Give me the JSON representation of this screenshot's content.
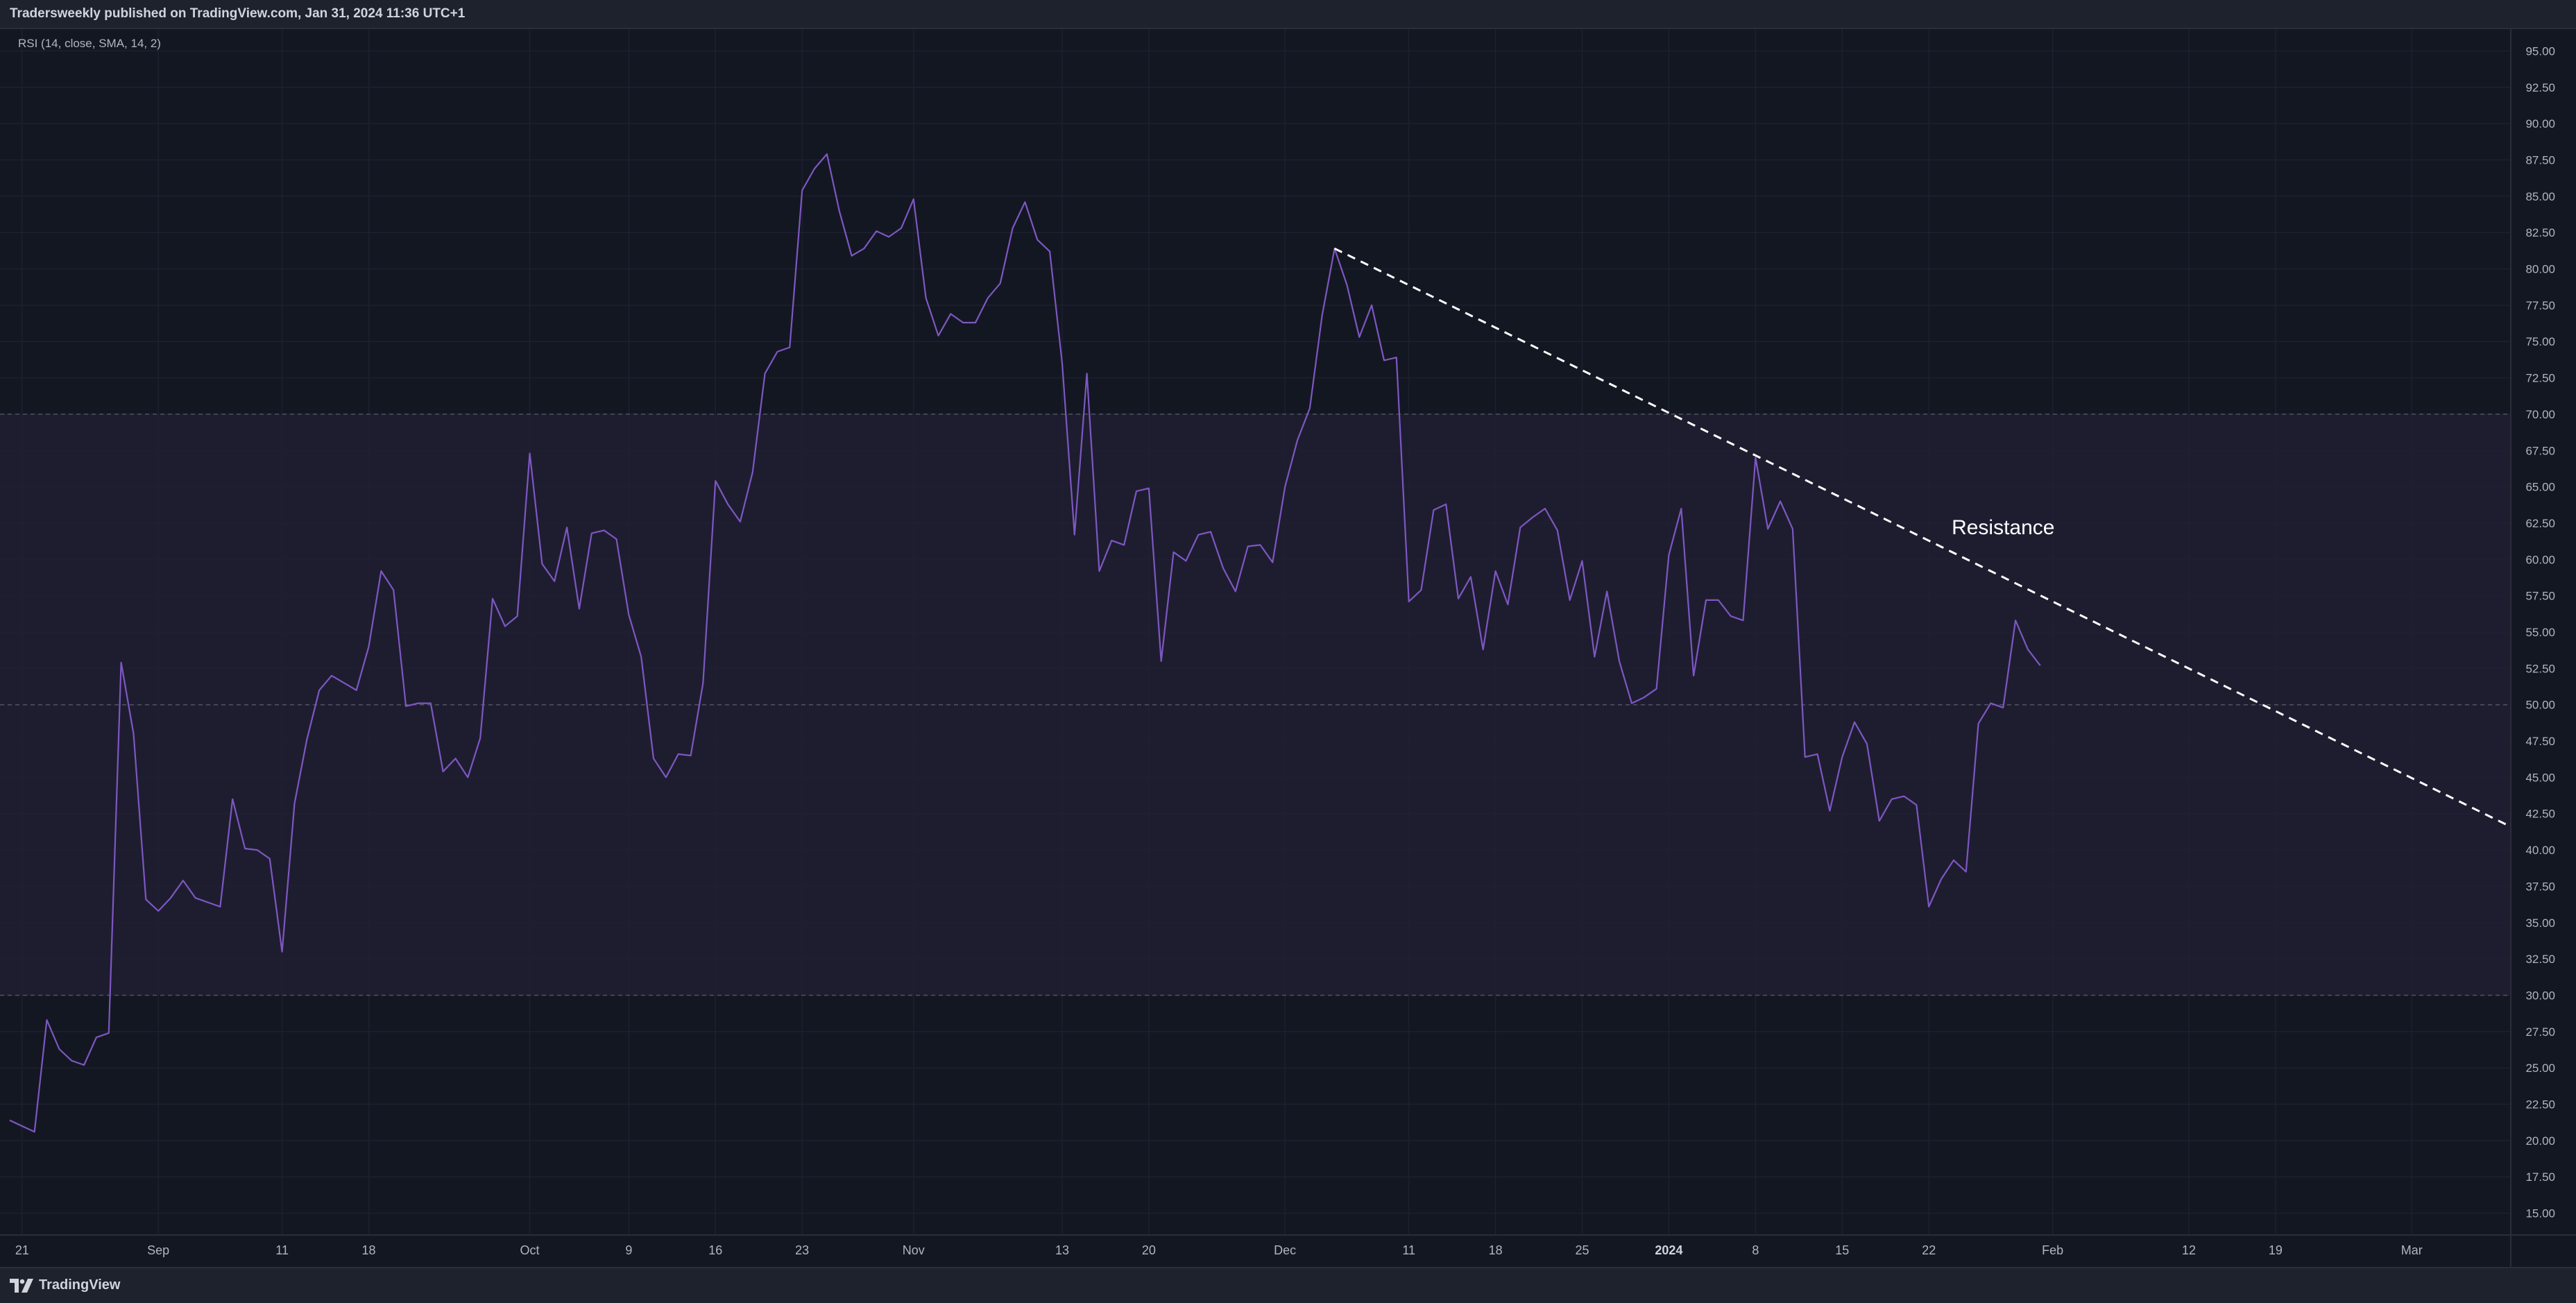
{
  "header": {
    "publisher": "Tradersweekly published on TradingView.com, Jan 31, 2024 11:36 UTC+1"
  },
  "footer": {
    "brand": "TradingView"
  },
  "theme": {
    "background": "#131722",
    "band_fill": "#211f33",
    "rsi_line": "#7e57c2",
    "trendline": "#ffffff",
    "text": "#d1d4dc",
    "axis_text": "#b2b5be",
    "grid": "#1d2130"
  },
  "chart_data": {
    "type": "line",
    "title": "RSI (14, close, SMA, 14, 2)",
    "xlabel": "",
    "ylabel": "",
    "ylim": [
      13.5,
      96.5
    ],
    "xlim": [
      "2023-08-20",
      "2024-03-09"
    ],
    "grid": true,
    "y_ticks": [
      "95.00",
      "92.50",
      "90.00",
      "87.50",
      "85.00",
      "82.50",
      "80.00",
      "77.50",
      "75.00",
      "72.50",
      "70.00",
      "67.50",
      "65.00",
      "62.50",
      "60.00",
      "57.50",
      "55.00",
      "52.50",
      "50.00",
      "47.50",
      "45.00",
      "42.50",
      "40.00",
      "37.50",
      "35.00",
      "32.50",
      "30.00",
      "27.50",
      "25.00",
      "22.50",
      "20.00",
      "17.50",
      "15.00"
    ],
    "x_ticks": [
      {
        "label": "21",
        "date": "2023-08-21"
      },
      {
        "label": "Sep",
        "date": "2023-09-01"
      },
      {
        "label": "11",
        "date": "2023-09-11"
      },
      {
        "label": "18",
        "date": "2023-09-18"
      },
      {
        "label": "Oct",
        "date": "2023-10-01"
      },
      {
        "label": "9",
        "date": "2023-10-09"
      },
      {
        "label": "16",
        "date": "2023-10-16"
      },
      {
        "label": "23",
        "date": "2023-10-23"
      },
      {
        "label": "Nov",
        "date": "2023-11-01"
      },
      {
        "label": "13",
        "date": "2023-11-13"
      },
      {
        "label": "20",
        "date": "2023-11-20"
      },
      {
        "label": "Dec",
        "date": "2023-12-01"
      },
      {
        "label": "11",
        "date": "2023-12-11"
      },
      {
        "label": "18",
        "date": "2023-12-18"
      },
      {
        "label": "25",
        "date": "2023-12-25"
      },
      {
        "label": "2024",
        "date": "2024-01-01",
        "bold": true
      },
      {
        "label": "8",
        "date": "2024-01-08"
      },
      {
        "label": "15",
        "date": "2024-01-15"
      },
      {
        "label": "22",
        "date": "2024-01-22"
      },
      {
        "label": "Feb",
        "date": "2024-02-01"
      },
      {
        "label": "12",
        "date": "2024-02-12"
      },
      {
        "label": "19",
        "date": "2024-02-19"
      },
      {
        "label": "Mar",
        "date": "2024-03-01"
      }
    ],
    "bands": [
      {
        "value": 70,
        "style": "dashed"
      },
      {
        "value": 50,
        "style": "dashed"
      },
      {
        "value": 30,
        "style": "dashed"
      }
    ],
    "band_fill_range": [
      30,
      70
    ],
    "series": [
      {
        "color": "#7e57c2",
        "points": [
          [
            "2023-08-20",
            21.4
          ],
          [
            "2023-08-21",
            21.0
          ],
          [
            "2023-08-22",
            20.6
          ],
          [
            "2023-08-23",
            28.3
          ],
          [
            "2023-08-24",
            26.3
          ],
          [
            "2023-08-25",
            25.5
          ],
          [
            "2023-08-26",
            25.2
          ],
          [
            "2023-08-27",
            27.1
          ],
          [
            "2023-08-28",
            27.4
          ],
          [
            "2023-08-29",
            52.9
          ],
          [
            "2023-08-30",
            48.0
          ],
          [
            "2023-08-31",
            36.6
          ],
          [
            "2023-09-01",
            35.8
          ],
          [
            "2023-09-02",
            36.7
          ],
          [
            "2023-09-03",
            37.9
          ],
          [
            "2023-09-04",
            36.7
          ],
          [
            "2023-09-05",
            36.4
          ],
          [
            "2023-09-06",
            36.1
          ],
          [
            "2023-09-07",
            43.5
          ],
          [
            "2023-09-08",
            40.1
          ],
          [
            "2023-09-09",
            40.0
          ],
          [
            "2023-09-10",
            39.4
          ],
          [
            "2023-09-11",
            33.0
          ],
          [
            "2023-09-12",
            43.2
          ],
          [
            "2023-09-13",
            47.6
          ],
          [
            "2023-09-14",
            51.0
          ],
          [
            "2023-09-15",
            52.0
          ],
          [
            "2023-09-16",
            51.5
          ],
          [
            "2023-09-17",
            51.0
          ],
          [
            "2023-09-18",
            54.0
          ],
          [
            "2023-09-19",
            59.2
          ],
          [
            "2023-09-20",
            57.9
          ],
          [
            "2023-09-21",
            49.9
          ],
          [
            "2023-09-22",
            50.1
          ],
          [
            "2023-09-23",
            50.1
          ],
          [
            "2023-09-24",
            45.4
          ],
          [
            "2023-09-25",
            46.3
          ],
          [
            "2023-09-26",
            45.0
          ],
          [
            "2023-09-27",
            47.7
          ],
          [
            "2023-09-28",
            57.3
          ],
          [
            "2023-09-29",
            55.4
          ],
          [
            "2023-09-30",
            56.1
          ],
          [
            "2023-10-01",
            67.3
          ],
          [
            "2023-10-02",
            59.7
          ],
          [
            "2023-10-03",
            58.5
          ],
          [
            "2023-10-04",
            62.2
          ],
          [
            "2023-10-05",
            56.6
          ],
          [
            "2023-10-06",
            61.8
          ],
          [
            "2023-10-07",
            62.0
          ],
          [
            "2023-10-08",
            61.4
          ],
          [
            "2023-10-09",
            56.2
          ],
          [
            "2023-10-10",
            53.3
          ],
          [
            "2023-10-11",
            46.3
          ],
          [
            "2023-10-12",
            45.0
          ],
          [
            "2023-10-13",
            46.6
          ],
          [
            "2023-10-14",
            46.5
          ],
          [
            "2023-10-15",
            51.5
          ],
          [
            "2023-10-16",
            65.4
          ],
          [
            "2023-10-17",
            63.8
          ],
          [
            "2023-10-18",
            62.6
          ],
          [
            "2023-10-19",
            66.0
          ],
          [
            "2023-10-20",
            72.8
          ],
          [
            "2023-10-21",
            74.3
          ],
          [
            "2023-10-22",
            74.6
          ],
          [
            "2023-10-23",
            85.4
          ],
          [
            "2023-10-24",
            86.9
          ],
          [
            "2023-10-25",
            87.9
          ],
          [
            "2023-10-26",
            84.0
          ],
          [
            "2023-10-27",
            80.9
          ],
          [
            "2023-10-28",
            81.4
          ],
          [
            "2023-10-29",
            82.6
          ],
          [
            "2023-10-30",
            82.2
          ],
          [
            "2023-10-31",
            82.8
          ],
          [
            "2023-11-01",
            84.8
          ],
          [
            "2023-11-02",
            78.0
          ],
          [
            "2023-11-03",
            75.4
          ],
          [
            "2023-11-04",
            76.9
          ],
          [
            "2023-11-05",
            76.3
          ],
          [
            "2023-11-06",
            76.3
          ],
          [
            "2023-11-07",
            78.0
          ],
          [
            "2023-11-08",
            79.0
          ],
          [
            "2023-11-09",
            82.8
          ],
          [
            "2023-11-10",
            84.6
          ],
          [
            "2023-11-11",
            82.0
          ],
          [
            "2023-11-12",
            81.2
          ],
          [
            "2023-11-13",
            73.5
          ],
          [
            "2023-11-14",
            61.7
          ],
          [
            "2023-11-15",
            72.8
          ],
          [
            "2023-11-16",
            59.2
          ],
          [
            "2023-11-17",
            61.3
          ],
          [
            "2023-11-18",
            61.0
          ],
          [
            "2023-11-19",
            64.7
          ],
          [
            "2023-11-20",
            64.9
          ],
          [
            "2023-11-21",
            53.0
          ],
          [
            "2023-11-22",
            60.5
          ],
          [
            "2023-11-23",
            59.9
          ],
          [
            "2023-11-24",
            61.7
          ],
          [
            "2023-11-25",
            61.9
          ],
          [
            "2023-11-26",
            59.4
          ],
          [
            "2023-11-27",
            57.8
          ],
          [
            "2023-11-28",
            60.9
          ],
          [
            "2023-11-29",
            61.0
          ],
          [
            "2023-11-30",
            59.8
          ],
          [
            "2023-12-01",
            65.0
          ],
          [
            "2023-12-02",
            68.2
          ],
          [
            "2023-12-03",
            70.4
          ],
          [
            "2023-12-04",
            76.8
          ],
          [
            "2023-12-05",
            81.4
          ],
          [
            "2023-12-06",
            78.9
          ],
          [
            "2023-12-07",
            75.3
          ],
          [
            "2023-12-08",
            77.5
          ],
          [
            "2023-12-09",
            73.7
          ],
          [
            "2023-12-10",
            73.9
          ],
          [
            "2023-12-11",
            57.1
          ],
          [
            "2023-12-12",
            57.9
          ],
          [
            "2023-12-13",
            63.4
          ],
          [
            "2023-12-14",
            63.8
          ],
          [
            "2023-12-15",
            57.3
          ],
          [
            "2023-12-16",
            58.8
          ],
          [
            "2023-12-17",
            53.8
          ],
          [
            "2023-12-18",
            59.2
          ],
          [
            "2023-12-19",
            56.9
          ],
          [
            "2023-12-20",
            62.2
          ],
          [
            "2023-12-21",
            62.9
          ],
          [
            "2023-12-22",
            63.5
          ],
          [
            "2023-12-23",
            62.0
          ],
          [
            "2023-12-24",
            57.2
          ],
          [
            "2023-12-25",
            59.9
          ],
          [
            "2023-12-26",
            53.3
          ],
          [
            "2023-12-27",
            57.8
          ],
          [
            "2023-12-28",
            53.0
          ],
          [
            "2023-12-29",
            50.1
          ],
          [
            "2023-12-30",
            50.5
          ],
          [
            "2023-12-31",
            51.1
          ],
          [
            "2024-01-01",
            60.3
          ],
          [
            "2024-01-02",
            63.5
          ],
          [
            "2024-01-03",
            52.0
          ],
          [
            "2024-01-04",
            57.2
          ],
          [
            "2024-01-05",
            57.2
          ],
          [
            "2024-01-06",
            56.1
          ],
          [
            "2024-01-07",
            55.8
          ],
          [
            "2024-01-08",
            67.0
          ],
          [
            "2024-01-09",
            62.1
          ],
          [
            "2024-01-10",
            64.0
          ],
          [
            "2024-01-11",
            62.1
          ],
          [
            "2024-01-12",
            46.4
          ],
          [
            "2024-01-13",
            46.6
          ],
          [
            "2024-01-14",
            42.7
          ],
          [
            "2024-01-15",
            46.4
          ],
          [
            "2024-01-16",
            48.8
          ],
          [
            "2024-01-17",
            47.3
          ],
          [
            "2024-01-18",
            42.0
          ],
          [
            "2024-01-19",
            43.5
          ],
          [
            "2024-01-20",
            43.7
          ],
          [
            "2024-01-21",
            43.1
          ],
          [
            "2024-01-22",
            36.1
          ],
          [
            "2024-01-23",
            38.0
          ],
          [
            "2024-01-24",
            39.3
          ],
          [
            "2024-01-25",
            38.5
          ],
          [
            "2024-01-26",
            48.7
          ],
          [
            "2024-01-27",
            50.1
          ],
          [
            "2024-01-28",
            49.8
          ],
          [
            "2024-01-29",
            55.8
          ],
          [
            "2024-01-30",
            53.8
          ],
          [
            "2024-01-31",
            52.7
          ]
        ]
      }
    ],
    "annotations": [
      {
        "type": "trendline",
        "style": "dashed",
        "from": [
          "2023-12-05",
          81.4
        ],
        "to": [
          "2024-03-09",
          41.6
        ]
      },
      {
        "type": "text",
        "text": "Resistance",
        "at": [
          "2024-01-28",
          62.2
        ]
      }
    ]
  }
}
